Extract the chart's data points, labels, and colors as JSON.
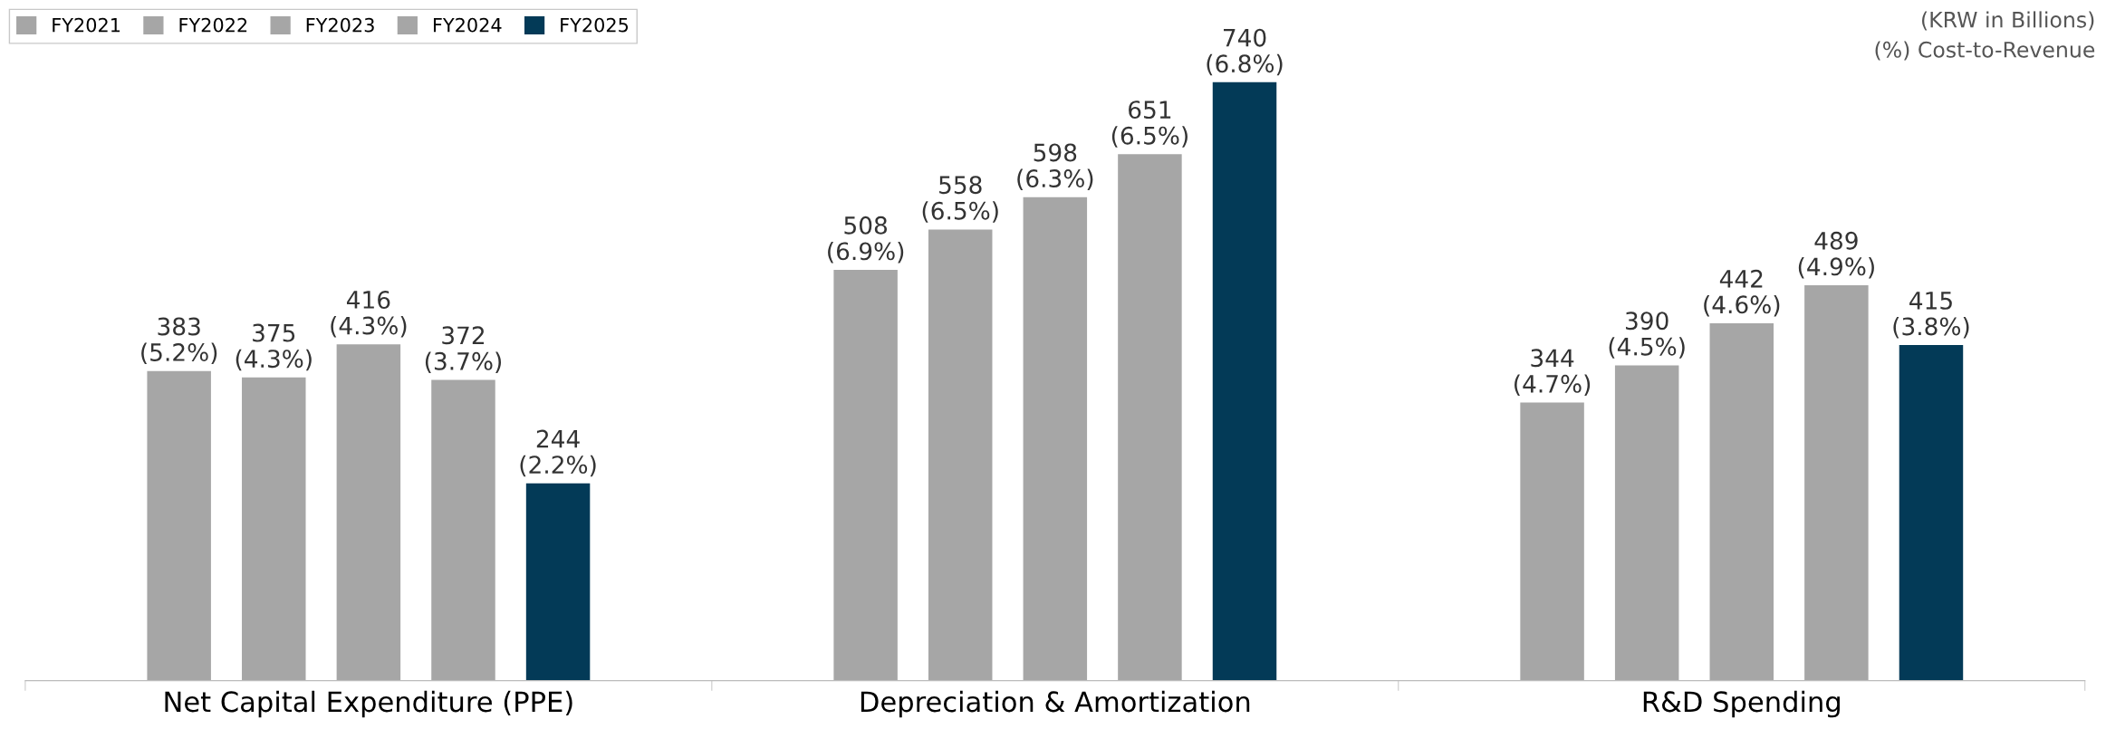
{
  "chart_data": {
    "type": "bar",
    "categories": [
      "Net Capital Expenditure (PPE)",
      "Depreciation & Amortization",
      "R&D Spending"
    ],
    "series": [
      {
        "name": "FY2021",
        "color": "#a6a6a6",
        "values": [
          383,
          508,
          344
        ],
        "value_labels": [
          "383\n(5.2%)",
          "508\n(6.9%)",
          "344\n(4.7%)"
        ]
      },
      {
        "name": "FY2022",
        "color": "#a6a6a6",
        "values": [
          375,
          558,
          390
        ],
        "value_labels": [
          "375\n(4.3%)",
          "558\n(6.5%)",
          "390\n(4.5%)"
        ]
      },
      {
        "name": "FY2023",
        "color": "#a6a6a6",
        "values": [
          416,
          598,
          442
        ],
        "value_labels": [
          "416\n(4.3%)",
          "598\n(6.3%)",
          "442\n(4.6%)"
        ]
      },
      {
        "name": "FY2024",
        "color": "#a6a6a6",
        "values": [
          372,
          651,
          489
        ],
        "value_labels": [
          "372\n(3.7%)",
          "651\n(6.5%)",
          "489\n(4.9%)"
        ]
      },
      {
        "name": "FY2025",
        "color": "#033a57",
        "values": [
          244,
          740,
          415
        ],
        "value_labels": [
          "244\n(2.2%)",
          "740\n(6.8%)",
          "415\n(3.8%)"
        ]
      }
    ],
    "annotations": [
      "(KRW in Billions)",
      "(%) Cost-to-Revenue"
    ],
    "legend": "top left",
    "grid": false,
    "tick_labels": "x"
  }
}
